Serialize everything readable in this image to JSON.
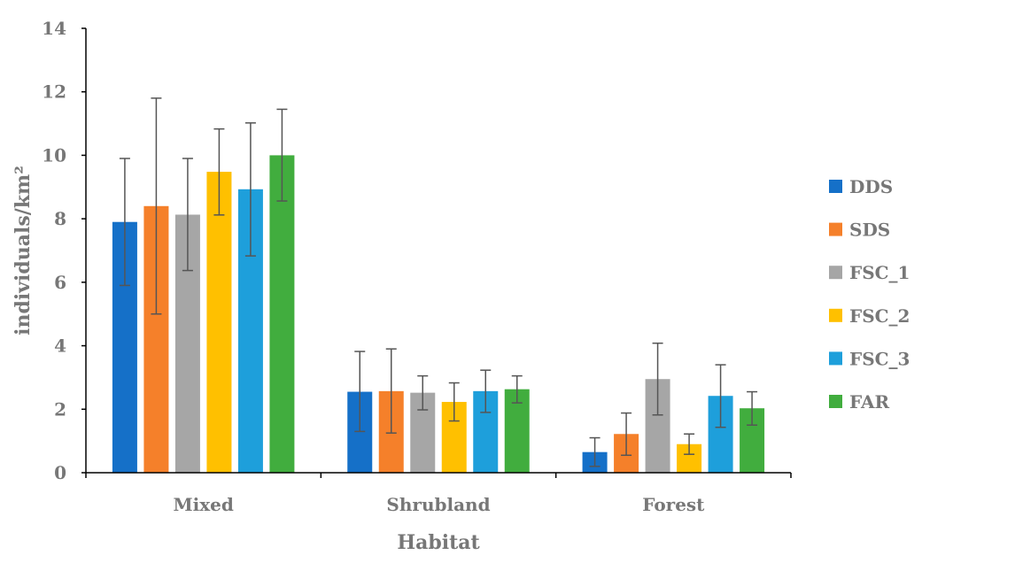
{
  "chart_data": {
    "type": "bar",
    "xlabel": "Habitat",
    "ylabel": "individuals/km²",
    "ylim": [
      0,
      14
    ],
    "yticks": [
      0,
      2,
      4,
      6,
      8,
      10,
      12,
      14
    ],
    "categories": [
      "Mixed",
      "Shrubland",
      "Forest"
    ],
    "legend_position": "right",
    "grid": false,
    "series": [
      {
        "name": "DDS",
        "color": "#1570c8",
        "values": [
          7.9,
          2.55,
          0.65
        ],
        "error_low": [
          5.9,
          1.3,
          0.2
        ],
        "error_high": [
          9.9,
          3.82,
          1.1
        ]
      },
      {
        "name": "SDS",
        "color": "#f5802a",
        "values": [
          8.4,
          2.57,
          1.22
        ],
        "error_low": [
          5.0,
          1.25,
          0.55
        ],
        "error_high": [
          11.8,
          3.9,
          1.88
        ]
      },
      {
        "name": "FSC_1",
        "color": "#a6a6a6",
        "values": [
          8.13,
          2.52,
          2.95
        ],
        "error_low": [
          6.37,
          1.98,
          1.82
        ],
        "error_high": [
          9.9,
          3.05,
          4.08
        ]
      },
      {
        "name": "FSC_2",
        "color": "#ffc000",
        "values": [
          9.48,
          2.23,
          0.9
        ],
        "error_low": [
          8.12,
          1.63,
          0.58
        ],
        "error_high": [
          10.83,
          2.83,
          1.22
        ]
      },
      {
        "name": "FSC_3",
        "color": "#1e9fdb",
        "values": [
          8.93,
          2.57,
          2.42
        ],
        "error_low": [
          6.83,
          1.9,
          1.43
        ],
        "error_high": [
          11.02,
          3.23,
          3.4
        ]
      },
      {
        "name": "FAR",
        "color": "#41ad3e",
        "values": [
          10.0,
          2.63,
          2.03
        ],
        "error_low": [
          8.56,
          2.2,
          1.5
        ],
        "error_high": [
          11.45,
          3.05,
          2.55
        ]
      }
    ]
  }
}
